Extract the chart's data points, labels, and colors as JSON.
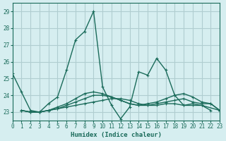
{
  "xlabel": "Humidex (Indice chaleur)",
  "ylabel": "",
  "xlim": [
    0,
    23
  ],
  "ylim": [
    22.5,
    29.5
  ],
  "yticks": [
    23,
    24,
    25,
    26,
    27,
    28,
    29
  ],
  "xticks": [
    0,
    1,
    2,
    3,
    4,
    5,
    6,
    7,
    8,
    9,
    10,
    11,
    12,
    13,
    14,
    15,
    16,
    17,
    18,
    19,
    20,
    21,
    22,
    23
  ],
  "bg_color": "#d6eef0",
  "grid_color": "#b0cdd0",
  "line_color": "#1a6b5a",
  "series": [
    [
      25.3,
      24.2,
      23.1,
      23.0,
      23.5,
      23.9,
      25.5,
      27.3,
      27.8,
      29.0,
      24.5,
      23.4,
      22.6,
      23.3,
      25.4,
      25.2,
      26.2,
      25.5,
      24.0,
      23.4,
      23.5,
      23.4,
      23.1
    ],
    [
      23.1,
      23.0,
      23.0,
      23.1,
      23.2,
      23.3,
      23.4,
      23.5,
      23.6,
      23.7,
      23.8,
      23.8,
      23.7,
      23.5,
      23.4,
      23.4,
      23.5,
      23.5,
      23.4,
      23.4,
      23.4,
      23.1
    ],
    [
      23.1,
      23.0,
      23.0,
      23.1,
      23.2,
      23.4,
      23.6,
      23.8,
      24.0,
      24.0,
      23.9,
      23.7,
      23.5,
      23.4,
      23.4,
      23.5,
      23.6,
      23.7,
      23.8,
      23.6,
      23.5,
      23.5,
      23.1
    ],
    [
      23.1,
      23.0,
      23.0,
      23.1,
      23.3,
      23.5,
      23.8,
      24.1,
      24.2,
      24.1,
      23.9,
      23.7,
      23.5,
      23.4,
      23.5,
      23.6,
      23.8,
      24.0,
      24.1,
      23.9,
      23.6,
      23.5,
      23.1
    ]
  ],
  "series_x": [
    [
      0,
      1,
      2,
      3,
      4,
      5,
      6,
      7,
      8,
      9,
      10,
      11,
      12,
      13,
      14,
      15,
      16,
      17,
      18,
      19,
      20,
      21,
      22
    ],
    [
      1,
      2,
      3,
      4,
      5,
      6,
      7,
      8,
      9,
      10,
      11,
      12,
      13,
      14,
      15,
      16,
      17,
      18,
      19,
      20,
      21,
      23
    ],
    [
      1,
      2,
      3,
      4,
      5,
      6,
      7,
      8,
      9,
      10,
      11,
      12,
      13,
      14,
      15,
      16,
      17,
      18,
      19,
      20,
      21,
      22,
      23
    ],
    [
      1,
      2,
      3,
      4,
      5,
      6,
      7,
      8,
      9,
      10,
      11,
      12,
      13,
      14,
      15,
      16,
      17,
      18,
      19,
      20,
      21,
      22,
      23
    ]
  ]
}
